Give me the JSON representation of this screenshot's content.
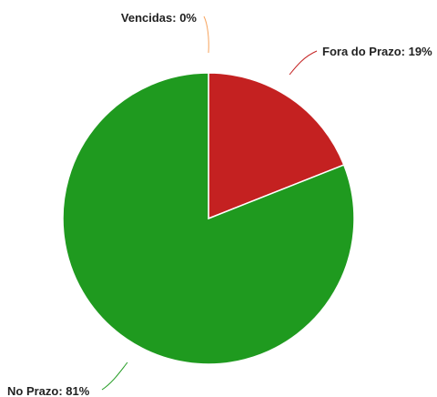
{
  "chart_data": {
    "type": "pie",
    "slices": [
      {
        "label": "Vencidas: 0%",
        "name": "Vencidas",
        "value": 0,
        "color": "#f7a35c"
      },
      {
        "label": "Fora do Prazo: 19%",
        "name": "Fora do Prazo",
        "value": 19,
        "color": "#c42121"
      },
      {
        "label": "No Prazo: 81%",
        "name": "No Prazo",
        "value": 81,
        "color": "#1f9a1f"
      }
    ]
  }
}
